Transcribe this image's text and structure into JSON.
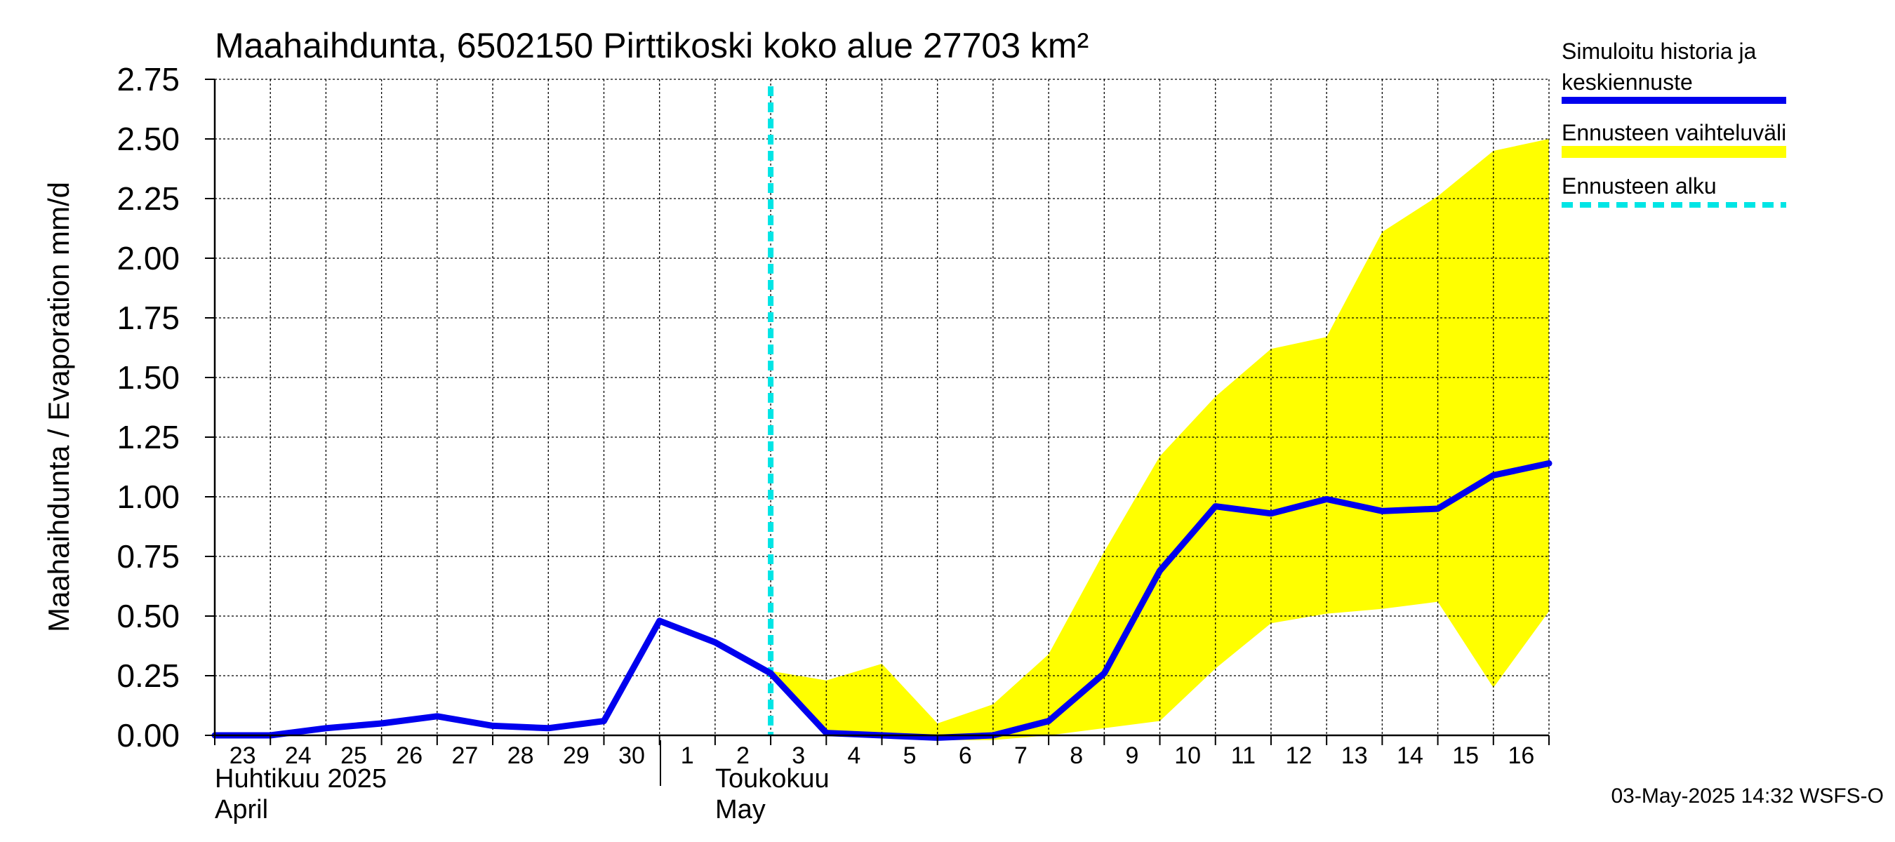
{
  "colors": {
    "history_line": "#0000ee",
    "band_fill": "#ffff00",
    "forecast_start": "#00e5e5",
    "grid": "#000000",
    "background": "#ffffff"
  },
  "chart_data": {
    "type": "line",
    "title": "Maahaihdunta, 6502150 Pirttikoski koko alue 27703 km²",
    "ylabel": "Maahaihdunta / Evaporation   mm/d",
    "ylim": [
      0,
      2.75
    ],
    "yticks": [
      "0.00",
      "0.25",
      "0.50",
      "0.75",
      "1.00",
      "1.25",
      "1.50",
      "1.75",
      "2.00",
      "2.25",
      "2.50",
      "2.75"
    ],
    "x": [
      "2025-04-23",
      "2025-04-24",
      "2025-04-25",
      "2025-04-26",
      "2025-04-27",
      "2025-04-28",
      "2025-04-29",
      "2025-04-30",
      "2025-05-01",
      "2025-05-02",
      "2025-05-03",
      "2025-05-04",
      "2025-05-05",
      "2025-05-06",
      "2025-05-07",
      "2025-05-08",
      "2025-05-09",
      "2025-05-10",
      "2025-05-11",
      "2025-05-12",
      "2025-05-13",
      "2025-05-14",
      "2025-05-15",
      "2025-05-16",
      "2025-05-17"
    ],
    "xtick_labels": [
      "23",
      "24",
      "25",
      "26",
      "27",
      "28",
      "29",
      "30",
      "1",
      "2",
      "3",
      "4",
      "5",
      "6",
      "7",
      "8",
      "9",
      "10",
      "11",
      "12",
      "13",
      "14",
      "15",
      "16"
    ],
    "month_labels": {
      "april_fi": "Huhtikuu  2025",
      "april_en": "April",
      "may_fi": "Toukokuu",
      "may_en": "May"
    },
    "forecast_start_x": "2025-05-03",
    "series": [
      {
        "name": "Simuloitu historia ja keskiennuste",
        "values": [
          0.0,
          0.0,
          0.03,
          0.05,
          0.08,
          0.04,
          0.03,
          0.06,
          0.48,
          0.39,
          0.26,
          0.01,
          0.0,
          -0.01,
          0.0,
          0.06,
          0.26,
          0.69,
          0.96,
          0.93,
          0.99,
          0.94,
          0.95,
          1.09,
          1.14
        ]
      },
      {
        "name": "Ennusteen vaihteluväli",
        "type": "band",
        "x_start": "2025-05-03",
        "lower": [
          0.26,
          0.0,
          -0.01,
          -0.02,
          -0.02,
          0.0,
          0.03,
          0.06,
          0.28,
          0.47,
          0.51,
          0.53,
          0.56,
          0.2,
          0.52
        ],
        "upper": [
          0.27,
          0.23,
          0.3,
          0.05,
          0.13,
          0.34,
          0.77,
          1.17,
          1.42,
          1.62,
          1.67,
          2.11,
          2.26,
          2.45,
          2.5
        ]
      }
    ],
    "legend": {
      "placement": "right",
      "history_line1": "Simuloitu historia ja",
      "history_line2": "keskiennuste",
      "band": "Ennusteen vaihteluväli",
      "forecast_start": "Ennusteen alku"
    },
    "grid": true
  },
  "footer": {
    "timestamp": "03-May-2025 14:32 WSFS-O"
  }
}
